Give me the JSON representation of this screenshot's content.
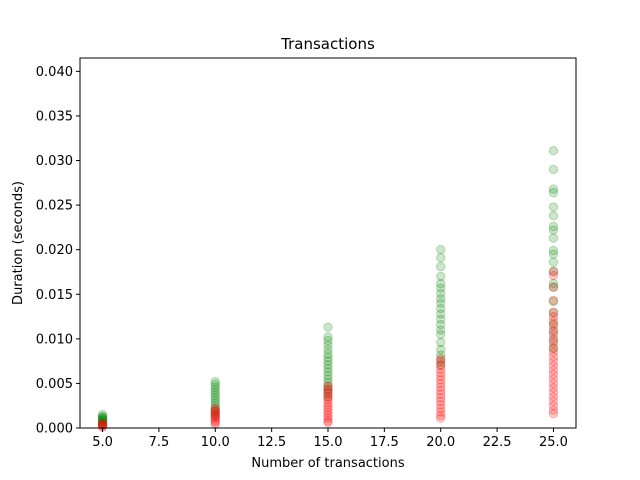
{
  "chart_data": {
    "type": "scatter",
    "title": "Transactions",
    "xlabel": "Number of transactions",
    "ylabel": "Duration (seconds)",
    "xlim": [
      4.0,
      26.0
    ],
    "ylim": [
      0.0,
      0.0415
    ],
    "xticks": [
      5.0,
      7.5,
      10.0,
      12.5,
      15.0,
      17.5,
      20.0,
      22.5,
      25.0
    ],
    "xtick_labels": [
      "5.0",
      "7.5",
      "10.0",
      "12.5",
      "15.0",
      "17.5",
      "20.0",
      "22.5",
      "25.0"
    ],
    "yticks": [
      0.0,
      0.005,
      0.01,
      0.015,
      0.02,
      0.025,
      0.03,
      0.035,
      0.04
    ],
    "ytick_labels": [
      "0.000",
      "0.005",
      "0.010",
      "0.015",
      "0.020",
      "0.025",
      "0.030",
      "0.035",
      "0.040"
    ],
    "grid": false,
    "marker_alpha": 0.2,
    "series": [
      {
        "color": "#008000",
        "points": [
          {
            "x": 5,
            "y": 0.0015
          },
          {
            "x": 5,
            "y": 0.0013
          },
          {
            "x": 5,
            "y": 0.0012
          },
          {
            "x": 5,
            "y": 0.0011
          },
          {
            "x": 5,
            "y": 0.001
          },
          {
            "x": 5,
            "y": 0.0009
          },
          {
            "x": 5,
            "y": 0.0008
          },
          {
            "x": 5,
            "y": 0.0007
          },
          {
            "x": 5,
            "y": 0.0006
          },
          {
            "x": 5,
            "y": 0.0005
          },
          {
            "x": 5,
            "y": 0.0004
          },
          {
            "x": 10,
            "y": 0.0052
          },
          {
            "x": 10,
            "y": 0.0049
          },
          {
            "x": 10,
            "y": 0.0046
          },
          {
            "x": 10,
            "y": 0.0043
          },
          {
            "x": 10,
            "y": 0.004
          },
          {
            "x": 10,
            "y": 0.0037
          },
          {
            "x": 10,
            "y": 0.0034
          },
          {
            "x": 10,
            "y": 0.0031
          },
          {
            "x": 10,
            "y": 0.0028
          },
          {
            "x": 10,
            "y": 0.0025
          },
          {
            "x": 10,
            "y": 0.0022
          },
          {
            "x": 10,
            "y": 0.0019
          },
          {
            "x": 10,
            "y": 0.0016
          },
          {
            "x": 10,
            "y": 0.0013
          },
          {
            "x": 15,
            "y": 0.0113
          },
          {
            "x": 15,
            "y": 0.0102
          },
          {
            "x": 15,
            "y": 0.0098
          },
          {
            "x": 15,
            "y": 0.0093
          },
          {
            "x": 15,
            "y": 0.0088
          },
          {
            "x": 15,
            "y": 0.0083
          },
          {
            "x": 15,
            "y": 0.0079
          },
          {
            "x": 15,
            "y": 0.0075
          },
          {
            "x": 15,
            "y": 0.0071
          },
          {
            "x": 15,
            "y": 0.0067
          },
          {
            "x": 15,
            "y": 0.0063
          },
          {
            "x": 15,
            "y": 0.0059
          },
          {
            "x": 15,
            "y": 0.0055
          },
          {
            "x": 15,
            "y": 0.0051
          },
          {
            "x": 15,
            "y": 0.0047
          },
          {
            "x": 15,
            "y": 0.0043
          },
          {
            "x": 15,
            "y": 0.0039
          },
          {
            "x": 15,
            "y": 0.0035
          },
          {
            "x": 20,
            "y": 0.02
          },
          {
            "x": 20,
            "y": 0.0191
          },
          {
            "x": 20,
            "y": 0.0181
          },
          {
            "x": 20,
            "y": 0.017
          },
          {
            "x": 20,
            "y": 0.0162
          },
          {
            "x": 20,
            "y": 0.0157
          },
          {
            "x": 20,
            "y": 0.0151
          },
          {
            "x": 20,
            "y": 0.0145
          },
          {
            "x": 20,
            "y": 0.014
          },
          {
            "x": 20,
            "y": 0.0134
          },
          {
            "x": 20,
            "y": 0.0128
          },
          {
            "x": 20,
            "y": 0.0122
          },
          {
            "x": 20,
            "y": 0.0116
          },
          {
            "x": 20,
            "y": 0.011
          },
          {
            "x": 20,
            "y": 0.0105
          },
          {
            "x": 20,
            "y": 0.0096
          },
          {
            "x": 20,
            "y": 0.0088
          },
          {
            "x": 20,
            "y": 0.0082
          },
          {
            "x": 20,
            "y": 0.0076
          },
          {
            "x": 20,
            "y": 0.0071
          },
          {
            "x": 25,
            "y": 0.0311
          },
          {
            "x": 25,
            "y": 0.029
          },
          {
            "x": 25,
            "y": 0.0268
          },
          {
            "x": 25,
            "y": 0.0264
          },
          {
            "x": 25,
            "y": 0.0248
          },
          {
            "x": 25,
            "y": 0.0238
          },
          {
            "x": 25,
            "y": 0.0226
          },
          {
            "x": 25,
            "y": 0.0222
          },
          {
            "x": 25,
            "y": 0.0213
          },
          {
            "x": 25,
            "y": 0.0199
          },
          {
            "x": 25,
            "y": 0.0195
          },
          {
            "x": 25,
            "y": 0.0186
          },
          {
            "x": 25,
            "y": 0.0176
          },
          {
            "x": 25,
            "y": 0.0162
          },
          {
            "x": 25,
            "y": 0.0158
          },
          {
            "x": 25,
            "y": 0.0142
          },
          {
            "x": 25,
            "y": 0.0129
          },
          {
            "x": 25,
            "y": 0.0117
          },
          {
            "x": 25,
            "y": 0.0108
          },
          {
            "x": 25,
            "y": 0.0098
          },
          {
            "x": 25,
            "y": 0.0089
          }
        ]
      },
      {
        "color": "#ff0000",
        "points": [
          {
            "x": 5,
            "y": 0.0005
          },
          {
            "x": 5,
            "y": 0.0004
          },
          {
            "x": 5,
            "y": 0.0003
          },
          {
            "x": 5,
            "y": 0.0002
          },
          {
            "x": 5,
            "y": 0.0001
          },
          {
            "x": 10,
            "y": 0.0022
          },
          {
            "x": 10,
            "y": 0.002
          },
          {
            "x": 10,
            "y": 0.0018
          },
          {
            "x": 10,
            "y": 0.0016
          },
          {
            "x": 10,
            "y": 0.0014
          },
          {
            "x": 10,
            "y": 0.0012
          },
          {
            "x": 10,
            "y": 0.001
          },
          {
            "x": 10,
            "y": 0.0008
          },
          {
            "x": 10,
            "y": 0.0006
          },
          {
            "x": 10,
            "y": 0.0004
          },
          {
            "x": 15,
            "y": 0.0047
          },
          {
            "x": 15,
            "y": 0.0044
          },
          {
            "x": 15,
            "y": 0.0041
          },
          {
            "x": 15,
            "y": 0.0038
          },
          {
            "x": 15,
            "y": 0.0035
          },
          {
            "x": 15,
            "y": 0.0032
          },
          {
            "x": 15,
            "y": 0.0029
          },
          {
            "x": 15,
            "y": 0.0026
          },
          {
            "x": 15,
            "y": 0.0023
          },
          {
            "x": 15,
            "y": 0.002
          },
          {
            "x": 15,
            "y": 0.0017
          },
          {
            "x": 15,
            "y": 0.0014
          },
          {
            "x": 15,
            "y": 0.0011
          },
          {
            "x": 15,
            "y": 0.0008
          },
          {
            "x": 15,
            "y": 0.0006
          },
          {
            "x": 20,
            "y": 0.0078
          },
          {
            "x": 20,
            "y": 0.0074
          },
          {
            "x": 20,
            "y": 0.007
          },
          {
            "x": 20,
            "y": 0.0066
          },
          {
            "x": 20,
            "y": 0.0062
          },
          {
            "x": 20,
            "y": 0.0058
          },
          {
            "x": 20,
            "y": 0.0054
          },
          {
            "x": 20,
            "y": 0.005
          },
          {
            "x": 20,
            "y": 0.0046
          },
          {
            "x": 20,
            "y": 0.0042
          },
          {
            "x": 20,
            "y": 0.0038
          },
          {
            "x": 20,
            "y": 0.0034
          },
          {
            "x": 20,
            "y": 0.003
          },
          {
            "x": 20,
            "y": 0.0026
          },
          {
            "x": 20,
            "y": 0.0022
          },
          {
            "x": 20,
            "y": 0.0018
          },
          {
            "x": 20,
            "y": 0.0014
          },
          {
            "x": 20,
            "y": 0.0011
          },
          {
            "x": 25,
            "y": 0.0175
          },
          {
            "x": 25,
            "y": 0.0171
          },
          {
            "x": 25,
            "y": 0.0158
          },
          {
            "x": 25,
            "y": 0.0143
          },
          {
            "x": 25,
            "y": 0.013
          },
          {
            "x": 25,
            "y": 0.0125
          },
          {
            "x": 25,
            "y": 0.012
          },
          {
            "x": 25,
            "y": 0.0115
          },
          {
            "x": 25,
            "y": 0.011
          },
          {
            "x": 25,
            "y": 0.0105
          },
          {
            "x": 25,
            "y": 0.01
          },
          {
            "x": 25,
            "y": 0.0095
          },
          {
            "x": 25,
            "y": 0.009
          },
          {
            "x": 25,
            "y": 0.0085
          },
          {
            "x": 25,
            "y": 0.008
          },
          {
            "x": 25,
            "y": 0.0075
          },
          {
            "x": 25,
            "y": 0.007
          },
          {
            "x": 25,
            "y": 0.0065
          },
          {
            "x": 25,
            "y": 0.006
          },
          {
            "x": 25,
            "y": 0.0055
          },
          {
            "x": 25,
            "y": 0.005
          },
          {
            "x": 25,
            "y": 0.0045
          },
          {
            "x": 25,
            "y": 0.004
          },
          {
            "x": 25,
            "y": 0.0035
          },
          {
            "x": 25,
            "y": 0.003
          },
          {
            "x": 25,
            "y": 0.0025
          },
          {
            "x": 25,
            "y": 0.002
          },
          {
            "x": 25,
            "y": 0.0016
          }
        ]
      }
    ]
  }
}
